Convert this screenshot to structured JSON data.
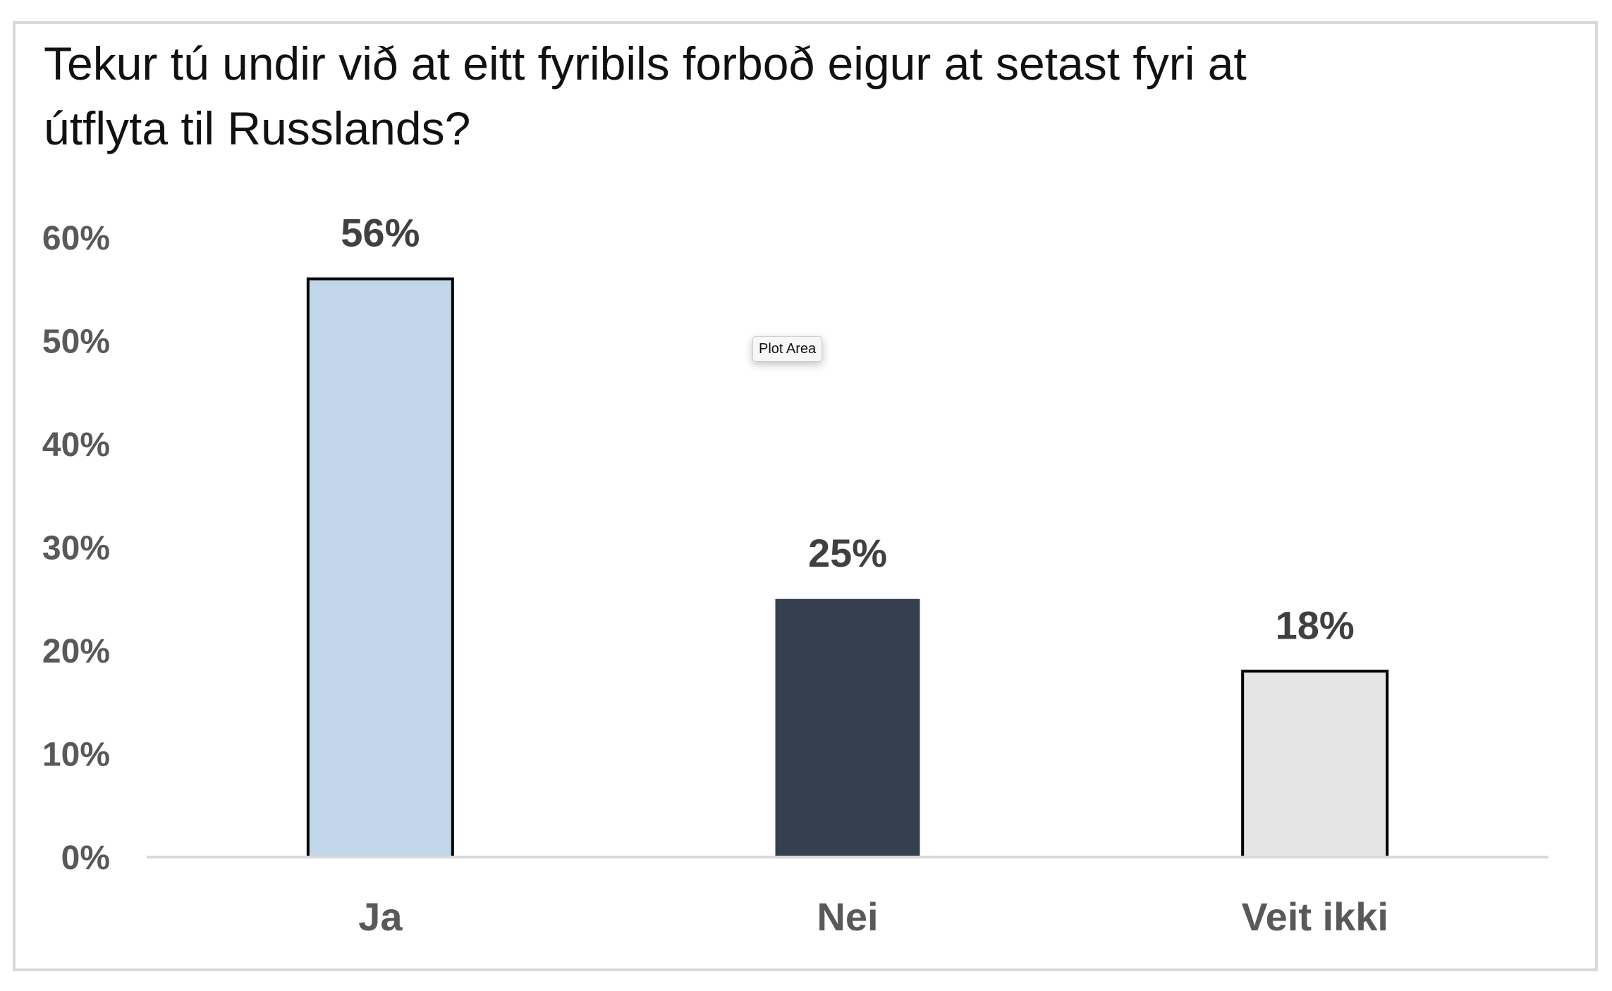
{
  "chart_data": {
    "type": "bar",
    "title": "Tekur tú undir við at eitt fyribils forboð eigur at setast fyri at útflyta til Russlands?",
    "categories": [
      "Ja",
      "Nei",
      "Veit ikki"
    ],
    "values": [
      0.56,
      0.25,
      0.18
    ],
    "data_labels": [
      "56%",
      "25%",
      "18%"
    ],
    "xlabel": "",
    "ylabel": "",
    "ylim": [
      0,
      0.6
    ],
    "y_ticks": [
      0,
      0.1,
      0.2,
      0.3,
      0.4,
      0.5,
      0.6
    ],
    "y_tick_labels": [
      "0%",
      "10%",
      "20%",
      "30%",
      "40%",
      "50%",
      "60%"
    ],
    "grid": false,
    "legend": "none",
    "bar_colors": [
      "#c2d6ea",
      "#363f4f",
      "#e6e5e5"
    ],
    "bar_outlines": [
      true,
      false,
      true
    ]
  },
  "tooltip": {
    "text": "Plot Area"
  },
  "colors": {
    "axis_line": "#d9d9d9",
    "bar_outline": "#000000",
    "tick_text": "#595959",
    "data_label_text": "#404040"
  }
}
